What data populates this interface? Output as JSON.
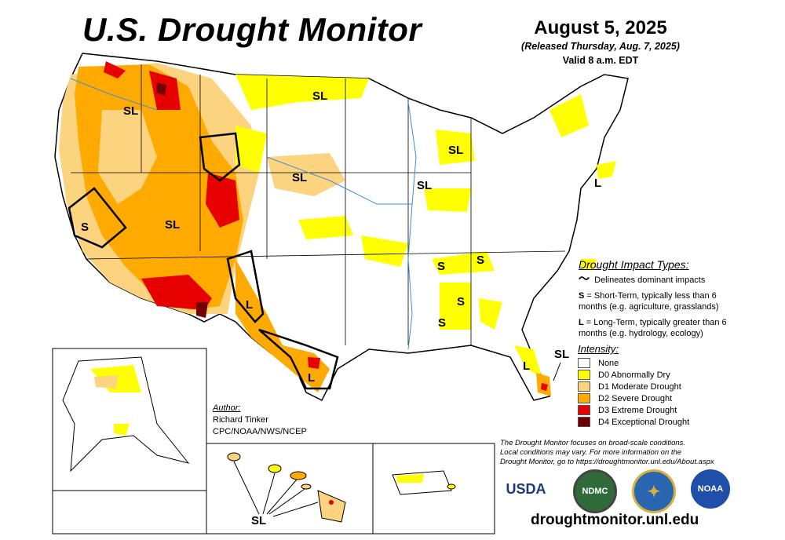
{
  "header": {
    "title": "U.S. Drought Monitor",
    "date": "August 5, 2025",
    "released": "(Released Thursday, Aug. 7, 2025)",
    "valid": "Valid 8 a.m. EDT"
  },
  "map_labels": {
    "sl": "SL",
    "s": "S",
    "l": "L"
  },
  "impact": {
    "heading": "Drought Impact Types:",
    "delineates": "Delineates dominant impacts",
    "short_term_key": "S",
    "short_term": " = Short-Term, typically less than 6 months (e.g. agriculture, grasslands)",
    "long_term_key": "L",
    "long_term": " = Long-Term, typically greater than 6 months (e.g. hydrology, ecology)"
  },
  "intensity": {
    "heading": "Intensity:",
    "levels": [
      {
        "label": "None",
        "color": "#ffffff"
      },
      {
        "label": "D0 Abnormally Dry",
        "color": "#ffff00"
      },
      {
        "label": "D1 Moderate Drought",
        "color": "#fcd37f"
      },
      {
        "label": "D2 Severe Drought",
        "color": "#ffaa00"
      },
      {
        "label": "D3 Extreme Drought",
        "color": "#e60000"
      },
      {
        "label": "D4 Exceptional Drought",
        "color": "#730000"
      }
    ]
  },
  "author": {
    "heading": "Author:",
    "name": "Richard Tinker",
    "org": "CPC/NOAA/NWS/NCEP"
  },
  "note": {
    "line1": "The Drought Monitor focuses on broad-scale conditions.",
    "line2": "Local conditions may vary. For more information on the",
    "line3": "Drought Monitor, go to https://droughtmonitor.unl.edu/About.aspx"
  },
  "logos": {
    "usda": "USDA",
    "ndmc": "NDMC",
    "noaa": "NOAA"
  },
  "url": "droughtmonitor.unl.edu"
}
